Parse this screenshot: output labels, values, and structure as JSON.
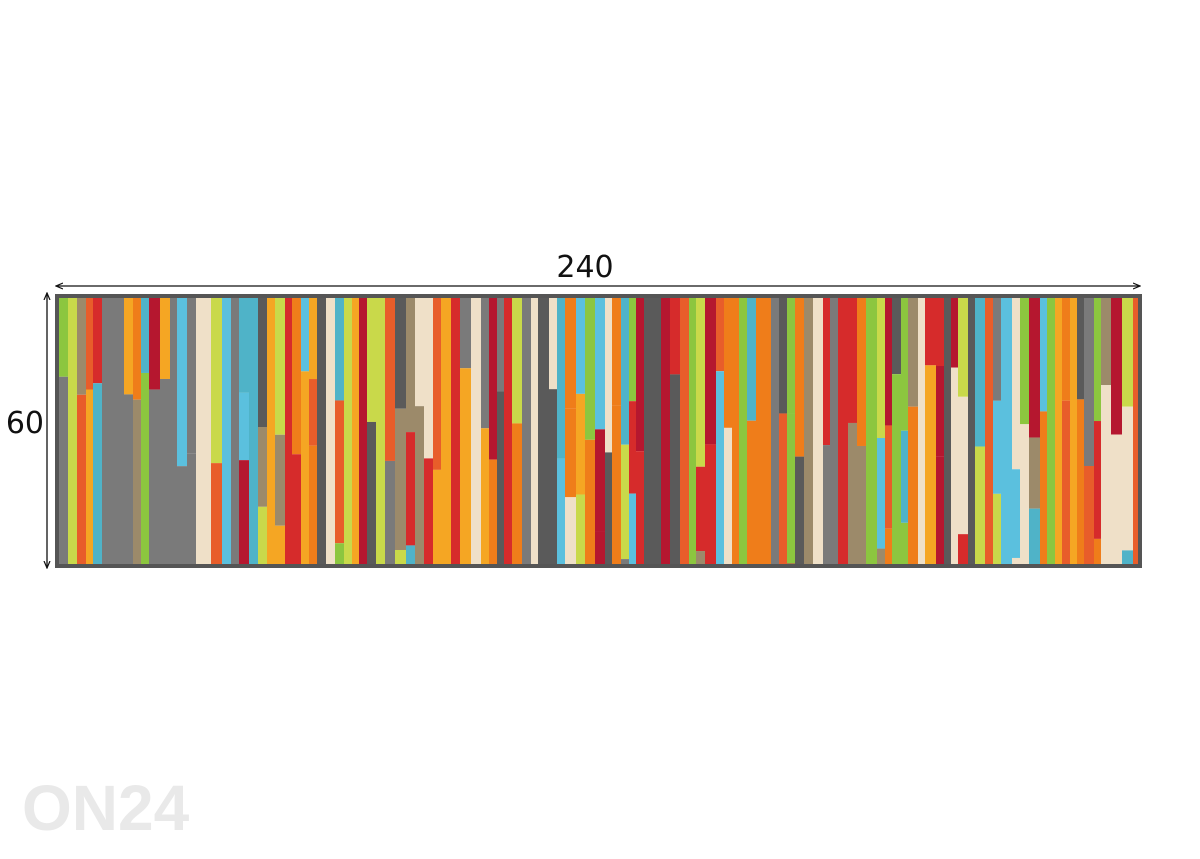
{
  "dimensions": {
    "width": 240,
    "height": 60
  },
  "watermark": "ON24"
}
